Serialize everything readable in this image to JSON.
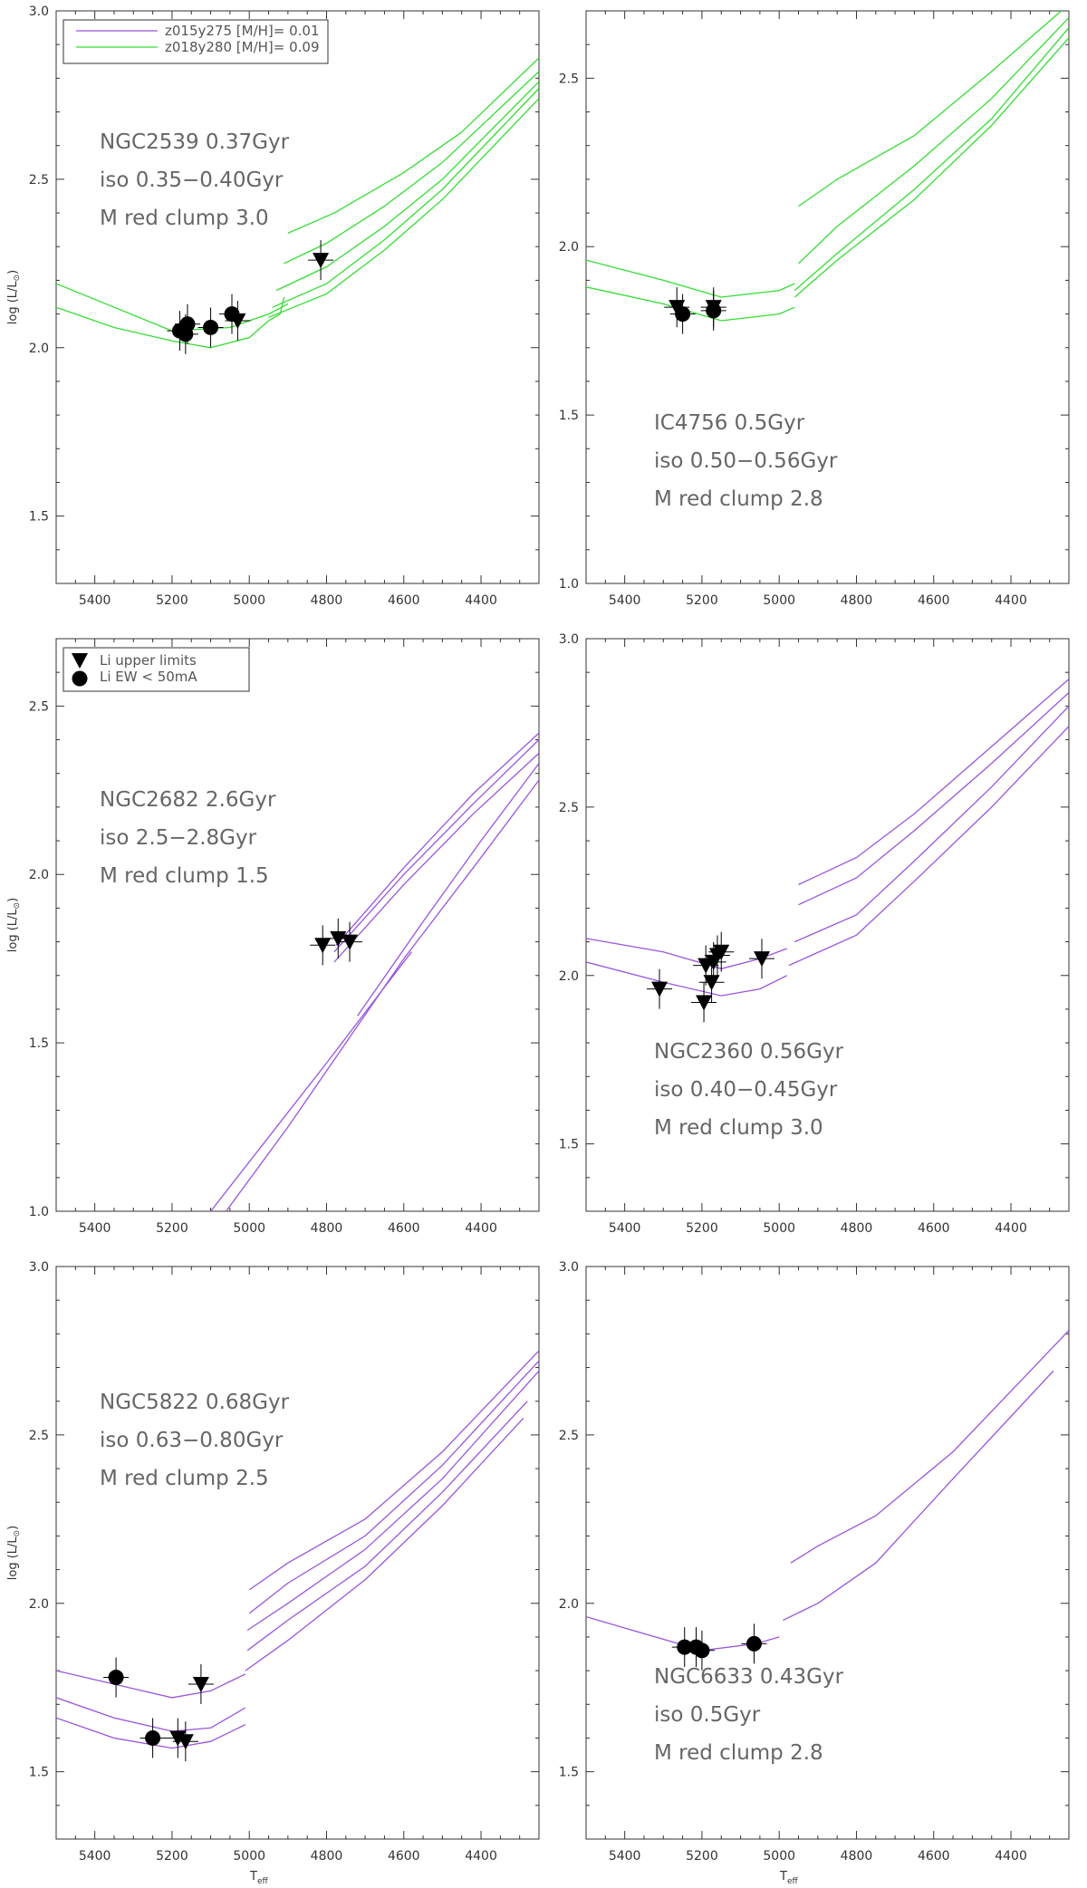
{
  "figure": {
    "xlabel": "T",
    "xlabel_sub": "eff",
    "ylabel": "log (L/L",
    "ylabel_sym": "⊙",
    "ylabel_end": ")"
  },
  "colors": {
    "green_isochrone": "#33dd33",
    "purple_isochrone": "#9955dd",
    "markers": "#000000",
    "axes": "#333333"
  },
  "chart_data": [
    {
      "type": "line",
      "panel": "NGC2539",
      "title": "",
      "annotation": [
        "NGC2539 0.37Gyr",
        "iso 0.35−0.40Gyr",
        "M red clump 3.0"
      ],
      "xlabel": "",
      "ylabel": "log (L/L⊙)",
      "xlim": [
        5500,
        4250
      ],
      "ylim": [
        1.3,
        3.0
      ],
      "xticks": [
        5400,
        5200,
        5000,
        4800,
        4600,
        4400
      ],
      "yticks": [
        1.5,
        2.0,
        2.5,
        3.0
      ],
      "legend": {
        "placement": "top-left",
        "entries": [
          {
            "label": "z015y275 [M/H]= 0.01",
            "color": "#9955dd"
          },
          {
            "label": "z018y280 [M/H]= 0.09",
            "color": "#33dd33"
          }
        ]
      },
      "series": [
        {
          "color": "#33dd33",
          "x": [
            5500,
            5350,
            5200,
            5050,
            4950,
            4900
          ],
          "y": [
            2.19,
            2.12,
            2.05,
            2.06,
            2.1,
            2.13
          ]
        },
        {
          "color": "#33dd33",
          "x": [
            5500,
            5350,
            5200,
            5100,
            5000,
            4950,
            4920,
            4910
          ],
          "y": [
            2.12,
            2.06,
            2.02,
            2.0,
            2.03,
            2.08,
            2.1,
            2.15
          ]
        },
        {
          "color": "#33dd33",
          "x": [
            4900,
            4780,
            4600,
            4450,
            4250
          ],
          "y": [
            2.34,
            2.4,
            2.52,
            2.64,
            2.86
          ]
        },
        {
          "color": "#33dd33",
          "x": [
            4910,
            4800,
            4650,
            4500,
            4250
          ],
          "y": [
            2.25,
            2.31,
            2.42,
            2.55,
            2.82
          ]
        },
        {
          "color": "#33dd33",
          "x": [
            4930,
            4800,
            4650,
            4500,
            4250
          ],
          "y": [
            2.17,
            2.24,
            2.36,
            2.5,
            2.79
          ]
        },
        {
          "color": "#33dd33",
          "x": [
            4940,
            4800,
            4650,
            4500,
            4250
          ],
          "y": [
            2.12,
            2.19,
            2.32,
            2.47,
            2.77
          ]
        },
        {
          "color": "#33dd33",
          "x": [
            4950,
            4800,
            4650,
            4500,
            4250
          ],
          "y": [
            2.09,
            2.16,
            2.29,
            2.44,
            2.74
          ]
        }
      ],
      "points": [
        {
          "shape": "circle",
          "x": 5180,
          "y": 2.05
        },
        {
          "shape": "circle",
          "x": 5165,
          "y": 2.04
        },
        {
          "shape": "circle",
          "x": 5160,
          "y": 2.07
        },
        {
          "shape": "circle",
          "x": 5100,
          "y": 2.06
        },
        {
          "shape": "circle",
          "x": 5045,
          "y": 2.1
        },
        {
          "shape": "triangle",
          "x": 5030,
          "y": 2.08
        },
        {
          "shape": "triangle",
          "x": 4815,
          "y": 2.26
        }
      ]
    },
    {
      "type": "line",
      "panel": "IC4756",
      "title": "",
      "annotation": [
        "IC4756 0.5Gyr",
        "iso 0.50−0.56Gyr",
        "M red clump 2.8"
      ],
      "xlabel": "",
      "ylabel": "",
      "xlim": [
        5500,
        4250
      ],
      "ylim": [
        1.0,
        2.7
      ],
      "xticks": [
        5400,
        5200,
        5000,
        4800,
        4600,
        4400
      ],
      "yticks": [
        1.0,
        1.5,
        2.0,
        2.5
      ],
      "series": [
        {
          "color": "#33dd33",
          "x": [
            5500,
            5300,
            5150,
            5000,
            4960
          ],
          "y": [
            1.96,
            1.9,
            1.85,
            1.87,
            1.89
          ]
        },
        {
          "color": "#33dd33",
          "x": [
            5500,
            5300,
            5150,
            5000,
            4960
          ],
          "y": [
            1.88,
            1.83,
            1.78,
            1.8,
            1.82
          ]
        },
        {
          "color": "#33dd33",
          "x": [
            4950,
            4850,
            4650,
            4450,
            4250
          ],
          "y": [
            2.12,
            2.2,
            2.33,
            2.52,
            2.72
          ]
        },
        {
          "color": "#33dd33",
          "x": [
            4950,
            4850,
            4650,
            4450,
            4250
          ],
          "y": [
            1.95,
            2.06,
            2.24,
            2.44,
            2.68
          ]
        },
        {
          "color": "#33dd33",
          "x": [
            4960,
            4850,
            4650,
            4450,
            4250
          ],
          "y": [
            1.87,
            1.98,
            2.17,
            2.38,
            2.65
          ]
        },
        {
          "color": "#33dd33",
          "x": [
            4960,
            4850,
            4650,
            4450,
            4250
          ],
          "y": [
            1.85,
            1.96,
            2.14,
            2.36,
            2.62
          ]
        }
      ],
      "points": [
        {
          "shape": "triangle",
          "x": 5265,
          "y": 1.82
        },
        {
          "shape": "circle",
          "x": 5250,
          "y": 1.8
        },
        {
          "shape": "circle",
          "x": 5170,
          "y": 1.81
        },
        {
          "shape": "triangle",
          "x": 5170,
          "y": 1.82
        }
      ]
    },
    {
      "type": "line",
      "panel": "NGC2682",
      "title": "",
      "annotation": [
        "NGC2682 2.6Gyr",
        "iso 2.5−2.8Gyr",
        "M red clump 1.5"
      ],
      "xlabel": "",
      "ylabel": "log (L/L⊙)",
      "xlim": [
        5500,
        4250
      ],
      "ylim": [
        1.0,
        2.7
      ],
      "xticks": [
        5400,
        5200,
        5000,
        4800,
        4600,
        4400
      ],
      "yticks": [
        1.0,
        1.5,
        2.0,
        2.5
      ],
      "legend": {
        "placement": "top-left",
        "entries": [
          {
            "label": "Li upper limits",
            "shape": "triangle"
          },
          {
            "label": "Li EW < 50mA",
            "shape": "circle"
          }
        ]
      },
      "series": [
        {
          "color": "#9955dd",
          "x": [
            5100,
            4950,
            4800,
            4680,
            4580
          ],
          "y": [
            1.0,
            1.22,
            1.44,
            1.62,
            1.77
          ]
        },
        {
          "color": "#9955dd",
          "x": [
            5060,
            4900,
            4750,
            4600,
            4420,
            4250
          ],
          "y": [
            1.0,
            1.25,
            1.5,
            1.75,
            2.02,
            2.28
          ]
        },
        {
          "color": "#9955dd",
          "x": [
            4720,
            4550,
            4400,
            4250
          ],
          "y": [
            1.58,
            1.86,
            2.1,
            2.33
          ]
        },
        {
          "color": "#9955dd",
          "x": [
            4780,
            4600,
            4420,
            4250
          ],
          "y": [
            1.74,
            1.97,
            2.18,
            2.36
          ]
        },
        {
          "color": "#9955dd",
          "x": [
            4780,
            4600,
            4420,
            4250
          ],
          "y": [
            1.77,
            2.0,
            2.21,
            2.4
          ]
        },
        {
          "color": "#9955dd",
          "x": [
            4775,
            4600,
            4420,
            4250
          ],
          "y": [
            1.79,
            2.02,
            2.24,
            2.42
          ]
        }
      ],
      "points": [
        {
          "shape": "triangle",
          "x": 4810,
          "y": 1.79
        },
        {
          "shape": "triangle",
          "x": 4770,
          "y": 1.81
        },
        {
          "shape": "triangle",
          "x": 4740,
          "y": 1.8
        }
      ]
    },
    {
      "type": "line",
      "panel": "NGC2360",
      "title": "",
      "annotation": [
        "NGC2360 0.56Gyr",
        "iso 0.40−0.45Gyr",
        "M red clump 3.0"
      ],
      "xlabel": "",
      "ylabel": "",
      "xlim": [
        5500,
        4250
      ],
      "ylim": [
        1.3,
        3.0
      ],
      "xticks": [
        5400,
        5200,
        5000,
        4800,
        4600,
        4400
      ],
      "yticks": [
        1.5,
        2.0,
        2.5,
        3.0
      ],
      "series": [
        {
          "color": "#9955dd",
          "x": [
            5500,
            5300,
            5150,
            5050,
            4980
          ],
          "y": [
            2.11,
            2.07,
            2.02,
            2.05,
            2.08
          ]
        },
        {
          "color": "#9955dd",
          "x": [
            5500,
            5300,
            5150,
            5050,
            4980
          ],
          "y": [
            2.04,
            1.98,
            1.94,
            1.96,
            2.0
          ]
        },
        {
          "color": "#9955dd",
          "x": [
            4950,
            4800,
            4650,
            4450,
            4250
          ],
          "y": [
            2.27,
            2.35,
            2.48,
            2.68,
            2.88
          ]
        },
        {
          "color": "#9955dd",
          "x": [
            4950,
            4800,
            4650,
            4450,
            4250
          ],
          "y": [
            2.21,
            2.29,
            2.43,
            2.63,
            2.84
          ]
        },
        {
          "color": "#9955dd",
          "x": [
            4960,
            4800,
            4650,
            4450,
            4250
          ],
          "y": [
            2.1,
            2.18,
            2.34,
            2.56,
            2.8
          ]
        },
        {
          "color": "#9955dd",
          "x": [
            4975,
            4800,
            4650,
            4450,
            4250
          ],
          "y": [
            2.03,
            2.12,
            2.28,
            2.5,
            2.74
          ]
        }
      ],
      "points": [
        {
          "shape": "triangle",
          "x": 5310,
          "y": 1.96
        },
        {
          "shape": "triangle",
          "x": 5195,
          "y": 1.92
        },
        {
          "shape": "triangle",
          "x": 5190,
          "y": 2.03
        },
        {
          "shape": "triangle",
          "x": 5175,
          "y": 1.98
        },
        {
          "shape": "triangle",
          "x": 5170,
          "y": 2.04
        },
        {
          "shape": "triangle",
          "x": 5160,
          "y": 2.06
        },
        {
          "shape": "triangle",
          "x": 5150,
          "y": 2.07
        },
        {
          "shape": "triangle",
          "x": 5045,
          "y": 2.05
        }
      ]
    },
    {
      "type": "line",
      "panel": "NGC5822",
      "title": "",
      "annotation": [
        "NGC5822 0.68Gyr",
        "iso 0.63−0.80Gyr",
        "M red clump 2.5"
      ],
      "xlabel": "T_eff",
      "ylabel": "log (L/L⊙)",
      "xlim": [
        5500,
        4250
      ],
      "ylim": [
        1.3,
        3.0
      ],
      "xticks": [
        5400,
        5200,
        5000,
        4800,
        4600,
        4400
      ],
      "yticks": [
        1.5,
        2.0,
        2.5,
        3.0
      ],
      "series": [
        {
          "color": "#9955dd",
          "x": [
            5500,
            5350,
            5200,
            5100,
            5010
          ],
          "y": [
            1.8,
            1.76,
            1.72,
            1.74,
            1.79
          ]
        },
        {
          "color": "#9955dd",
          "x": [
            5500,
            5350,
            5200,
            5100,
            5010
          ],
          "y": [
            1.72,
            1.66,
            1.62,
            1.63,
            1.69
          ]
        },
        {
          "color": "#9955dd",
          "x": [
            5500,
            5350,
            5200,
            5100,
            5010
          ],
          "y": [
            1.66,
            1.6,
            1.57,
            1.59,
            1.64
          ]
        },
        {
          "color": "#9955dd",
          "x": [
            5000,
            4900,
            4700,
            4500,
            4250
          ],
          "y": [
            2.04,
            2.12,
            2.25,
            2.45,
            2.75
          ]
        },
        {
          "color": "#9955dd",
          "x": [
            5000,
            4900,
            4700,
            4500,
            4250
          ],
          "y": [
            1.97,
            2.06,
            2.2,
            2.41,
            2.72
          ]
        },
        {
          "color": "#9955dd",
          "x": [
            5005,
            4900,
            4700,
            4500,
            4250
          ],
          "y": [
            1.92,
            2.0,
            2.16,
            2.37,
            2.69
          ]
        },
        {
          "color": "#9955dd",
          "x": [
            5005,
            4900,
            4700,
            4500,
            4280
          ],
          "y": [
            1.86,
            1.95,
            2.11,
            2.33,
            2.6
          ]
        },
        {
          "color": "#9955dd",
          "x": [
            5010,
            4900,
            4700,
            4500,
            4290
          ],
          "y": [
            1.8,
            1.89,
            2.07,
            2.29,
            2.55
          ]
        }
      ],
      "points": [
        {
          "shape": "circle",
          "x": 5345,
          "y": 1.78
        },
        {
          "shape": "circle",
          "x": 5250,
          "y": 1.6
        },
        {
          "shape": "triangle",
          "x": 5185,
          "y": 1.6
        },
        {
          "shape": "triangle",
          "x": 5165,
          "y": 1.59
        },
        {
          "shape": "triangle",
          "x": 5125,
          "y": 1.76
        }
      ]
    },
    {
      "type": "line",
      "panel": "NGC6633",
      "title": "",
      "annotation": [
        "NGC6633 0.43Gyr",
        "iso 0.5Gyr",
        "M red clump 2.8"
      ],
      "xlabel": "T_eff",
      "ylabel": "",
      "xlim": [
        5500,
        4250
      ],
      "ylim": [
        1.3,
        3.0
      ],
      "xticks": [
        5400,
        5200,
        5000,
        4800,
        4600,
        4400
      ],
      "yticks": [
        1.5,
        2.0,
        2.5,
        3.0
      ],
      "series": [
        {
          "color": "#9955dd",
          "x": [
            5500,
            5350,
            5200,
            5060,
            5000
          ],
          "y": [
            1.96,
            1.91,
            1.86,
            1.88,
            1.9
          ]
        },
        {
          "color": "#9955dd",
          "x": [
            4970,
            4900,
            4750,
            4550,
            4250
          ],
          "y": [
            2.12,
            2.17,
            2.26,
            2.45,
            2.81
          ]
        },
        {
          "color": "#9955dd",
          "x": [
            4990,
            4900,
            4750,
            4550,
            4290
          ],
          "y": [
            1.95,
            2.0,
            2.12,
            2.37,
            2.69
          ]
        }
      ],
      "points": [
        {
          "shape": "circle",
          "x": 5245,
          "y": 1.87
        },
        {
          "shape": "circle",
          "x": 5215,
          "y": 1.87
        },
        {
          "shape": "circle",
          "x": 5200,
          "y": 1.86
        },
        {
          "shape": "circle",
          "x": 5065,
          "y": 1.88
        }
      ]
    }
  ]
}
